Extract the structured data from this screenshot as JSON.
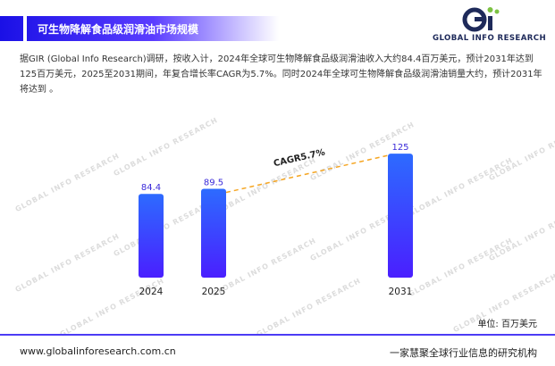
{
  "header": {
    "title": "可生物降解食品级润滑油市场规模",
    "logo_text": "GLOBAL INFO RESEARCH"
  },
  "intro": "据GIR (Global Info Research)调研，按收入计，2024年全球可生物降解食品级润滑油收入大约84.4百万美元，预计2031年达到125百万美元，2025至2031期间，年复合增长率CAGR为5.7%。同时2024年全球可生物降解食品级润滑油销量大约，预计2031年将达到 。",
  "chart_data": {
    "type": "bar",
    "categories": [
      "2024",
      "2025",
      "2031"
    ],
    "values": [
      84.4,
      89.5,
      125
    ],
    "value_labels": [
      "84.4",
      "89.5",
      "125"
    ],
    "annotation": "CAGR5.7%",
    "unit": "单位: 百万美元",
    "ylim": [
      0,
      135
    ],
    "grid": false,
    "bar_colors": [
      "#2d6bff",
      "#4a1fff"
    ],
    "label_color": "#3b2bd9",
    "annotation_line_color": "#f5a623"
  },
  "watermark": {
    "text": "GLOBAL INFO RESEARCH"
  },
  "footer": {
    "website": "www.globalinforesearch.com.cn",
    "slogan": "一家慧聚全球行业信息的研究机构"
  }
}
